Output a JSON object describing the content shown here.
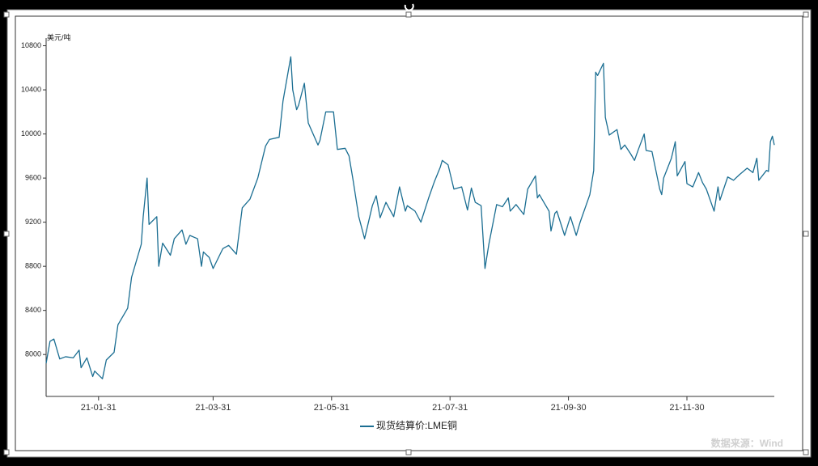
{
  "chart_data": {
    "type": "line",
    "y_label": "美元/吨",
    "source": "数据来源：Wind",
    "grid": false,
    "x": [
      "21-01-04",
      "21-01-06",
      "21-01-08",
      "21-01-11",
      "21-01-14",
      "21-01-18",
      "21-01-21",
      "21-01-22",
      "21-01-25",
      "21-01-28",
      "21-01-29",
      "21-02-02",
      "21-02-04",
      "21-02-08",
      "21-02-10",
      "21-02-15",
      "21-02-17",
      "21-02-22",
      "21-02-23",
      "21-02-25",
      "21-02-26",
      "21-03-02",
      "21-03-03",
      "21-03-05",
      "21-03-09",
      "21-03-11",
      "21-03-15",
      "21-03-17",
      "21-03-19",
      "21-03-23",
      "21-03-25",
      "21-03-26",
      "21-03-29",
      "21-03-31",
      "21-04-05",
      "21-04-08",
      "21-04-12",
      "21-04-15",
      "21-04-19",
      "21-04-23",
      "21-04-27",
      "21-04-29",
      "21-05-04",
      "21-05-06",
      "21-05-10",
      "21-05-11",
      "21-05-13",
      "21-05-14",
      "21-05-17",
      "21-05-19",
      "21-05-24",
      "21-05-25",
      "21-05-28",
      "21-06-01",
      "21-06-03",
      "21-06-07",
      "21-06-09",
      "21-06-11",
      "21-06-14",
      "21-06-17",
      "21-06-21",
      "21-06-23",
      "21-06-25",
      "21-06-28",
      "21-07-02",
      "21-07-05",
      "21-07-08",
      "21-07-09",
      "21-07-13",
      "21-07-16",
      "21-07-20",
      "21-07-23",
      "21-07-26",
      "21-07-27",
      "21-07-30",
      "21-08-02",
      "21-08-06",
      "21-08-09",
      "21-08-11",
      "21-08-13",
      "21-08-16",
      "21-08-18",
      "21-08-20",
      "21-08-24",
      "21-08-27",
      "21-08-30",
      "21-08-31",
      "21-09-03",
      "21-09-07",
      "21-09-09",
      "21-09-13",
      "21-09-14",
      "21-09-15",
      "21-09-20",
      "21-09-21",
      "21-09-23",
      "21-09-24",
      "21-09-28",
      "21-10-01",
      "21-10-04",
      "21-10-06",
      "21-10-11",
      "21-10-13",
      "21-10-14",
      "21-10-15",
      "21-10-18",
      "21-10-19",
      "21-10-21",
      "21-10-25",
      "21-10-27",
      "21-10-29",
      "21-11-01",
      "21-11-03",
      "21-11-05",
      "21-11-08",
      "21-11-09",
      "21-11-12",
      "21-11-16",
      "21-11-17",
      "21-11-18",
      "21-11-22",
      "21-11-24",
      "21-11-25",
      "21-11-29",
      "21-11-30",
      "21-12-03",
      "21-12-06",
      "21-12-08",
      "21-12-10",
      "21-12-14",
      "21-12-16",
      "21-12-17",
      "21-12-21",
      "21-12-24",
      "21-12-27",
      "21-12-31",
      "22-01-03",
      "22-01-05",
      "22-01-06",
      "22-01-10",
      "22-01-11",
      "22-01-12",
      "22-01-13",
      "22-01-14"
    ],
    "series": [
      {
        "name": "现货结算价:LME铜",
        "color": "#1b6e92",
        "values": [
          7920,
          8120,
          8140,
          7960,
          7980,
          7970,
          8040,
          7880,
          7970,
          7800,
          7850,
          7780,
          7950,
          8020,
          8270,
          8420,
          8700,
          9000,
          9250,
          9600,
          9180,
          9250,
          8800,
          9010,
          8900,
          9050,
          9130,
          9000,
          9080,
          9050,
          8800,
          8930,
          8880,
          8780,
          8960,
          8990,
          8910,
          9330,
          9410,
          9600,
          9890,
          9950,
          9970,
          10300,
          10700,
          10400,
          10220,
          10260,
          10460,
          10100,
          9900,
          9940,
          10200,
          10200,
          9860,
          9870,
          9800,
          9590,
          9250,
          9050,
          9350,
          9440,
          9240,
          9380,
          9250,
          9520,
          9300,
          9350,
          9300,
          9200,
          9420,
          9570,
          9700,
          9760,
          9720,
          9500,
          9520,
          9310,
          9510,
          9380,
          9350,
          8780,
          9000,
          9360,
          9340,
          9420,
          9300,
          9360,
          9270,
          9500,
          9620,
          9420,
          9450,
          9300,
          9120,
          9280,
          9300,
          9080,
          9250,
          9080,
          9200,
          9450,
          9670,
          10560,
          10530,
          10640,
          10150,
          9990,
          10040,
          9860,
          9900,
          9820,
          9760,
          9860,
          10000,
          9850,
          9840,
          9500,
          9450,
          9600,
          9780,
          9930,
          9620,
          9750,
          9550,
          9520,
          9650,
          9560,
          9500,
          9300,
          9520,
          9400,
          9610,
          9580,
          9630,
          9690,
          9650,
          9780,
          9580,
          9670,
          9660,
          9930,
          9980,
          9900
        ]
      }
    ],
    "xlim": [
      "21-01-04",
      "22-01-14"
    ],
    "xticks": [
      "21-01-31",
      "21-03-31",
      "21-05-31",
      "21-07-31",
      "21-09-30",
      "21-11-30"
    ],
    "ylim": [
      7620,
      10870
    ],
    "yticks": [
      8000,
      8400,
      8800,
      9200,
      9600,
      10000,
      10400,
      10800
    ]
  }
}
